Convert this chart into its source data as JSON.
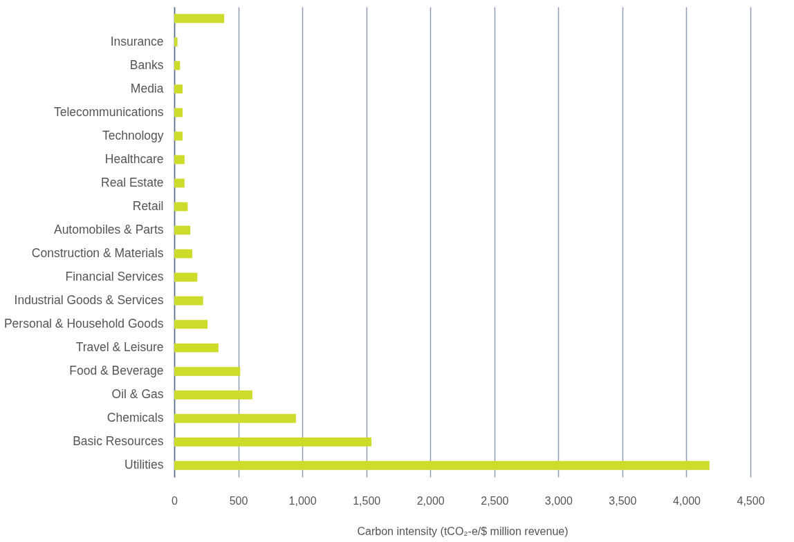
{
  "chart_data": {
    "type": "bar",
    "orientation": "horizontal",
    "xlabel": "Carbon intensity (tCO₂-e/$ million revenue)",
    "categories": [
      null,
      "Insurance",
      "Banks",
      "Media",
      "Telecommunications",
      "Technology",
      "Healthcare",
      "Real Estate",
      "Retail",
      "Automobiles & Parts",
      "Construction & Materials",
      "Financial Services",
      "Industrial Goods & Services",
      "Personal & Household Goods",
      "Travel & Leisure",
      "Food & Beverage",
      "Oil & Gas",
      "Chemicals",
      "Basic Resources",
      "Utilities"
    ],
    "values": [
      390,
      25,
      45,
      65,
      65,
      65,
      80,
      80,
      105,
      125,
      140,
      180,
      225,
      260,
      345,
      515,
      610,
      950,
      1540,
      4180
    ],
    "color": "#cddc2a",
    "xlim": [
      0,
      4500
    ],
    "xticks": [
      {
        "value": 0,
        "label": "0"
      },
      {
        "value": 500,
        "label": "500"
      },
      {
        "value": 1000,
        "label": "1,000"
      },
      {
        "value": 1500,
        "label": "1,500"
      },
      {
        "value": 2000,
        "label": "2,000"
      },
      {
        "value": 2500,
        "label": "2,500"
      },
      {
        "value": 3000,
        "label": "3,000"
      },
      {
        "value": 3500,
        "label": "3,500"
      },
      {
        "value": 4000,
        "label": "4,000"
      },
      {
        "value": 4500,
        "label": "4,500"
      }
    ],
    "grid": "x"
  }
}
